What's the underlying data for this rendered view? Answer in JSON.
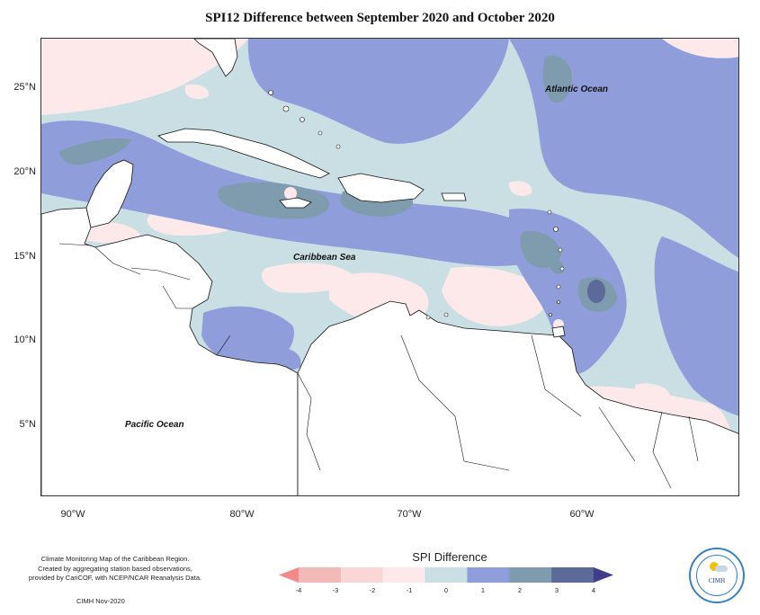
{
  "title": "SPI12 Difference between September 2020 and October 2020",
  "map": {
    "lat_labels": [
      "25°N",
      "20°N",
      "15°N",
      "10°N",
      "5°N"
    ],
    "lon_labels": [
      "90°W",
      "80°W",
      "70°W",
      "60°W"
    ],
    "oceans": {
      "atlantic": "Atlantic Ocean",
      "caribbean": "Caribbean Sea",
      "pacific": "Pacific Ocean"
    }
  },
  "legend": {
    "title": "SPI Difference",
    "ticks": [
      "-4",
      "-3",
      "-2",
      "-1",
      "0",
      "1",
      "2",
      "3",
      "4"
    ],
    "colors": [
      "#f08a8c",
      "#f1b9b8",
      "#f9d7d7",
      "#fde9ea",
      "#c9dfe3",
      "#8f9edb",
      "#7f9cae",
      "#5b6a98",
      "#403e8c"
    ]
  },
  "credits": {
    "line1": "Climate Monitoring Map of the Caribbean Region.",
    "line2": "Created by aggregating station based observations,",
    "line3": "provided by CariCOF, with NCEP/NCAR Reanalysis Data.",
    "date": "CIMH Nov-2020"
  },
  "logo": {
    "text": "CIMH"
  }
}
